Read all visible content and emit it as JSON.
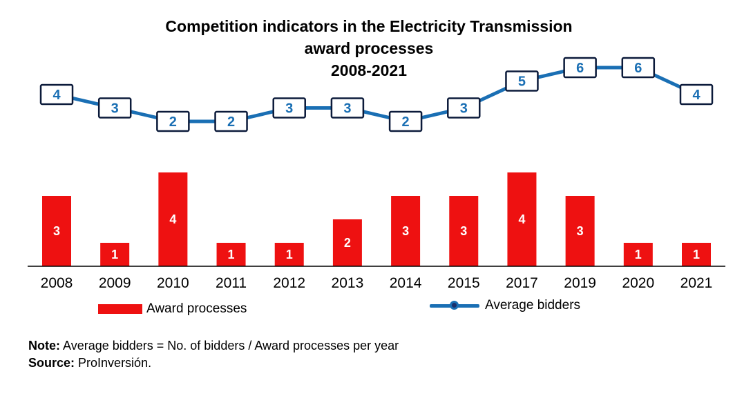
{
  "colors": {
    "bar": "#ee1111",
    "line": "#1a6fb4",
    "marker_border": "#0b1a3a",
    "marker_fill": "#ffffff",
    "label_text_bar": "#ffffff",
    "label_text_line": "#1a6fb4"
  },
  "chart_data": {
    "type": "bar+line",
    "title_lines": [
      "Competition indicators in the Electricity Transmission",
      "award processes",
      "2008-2021"
    ],
    "categories": [
      "2008",
      "2009",
      "2010",
      "2011",
      "2012",
      "2013",
      "2014",
      "2015",
      "2017",
      "2019",
      "2020",
      "2021"
    ],
    "series": [
      {
        "name": "Award processes",
        "kind": "bar",
        "values": [
          3,
          1,
          4,
          1,
          1,
          2,
          3,
          3,
          4,
          3,
          1,
          1
        ]
      },
      {
        "name": "Average bidders",
        "kind": "line",
        "values": [
          4,
          3,
          2,
          2,
          3,
          3,
          2,
          3,
          5,
          6,
          6,
          4
        ]
      }
    ],
    "xlabel": "",
    "ylabel": "",
    "grid": false,
    "legend_position": "bottom"
  },
  "legend": {
    "bar_label": "Award processes",
    "line_label": "Average bidders"
  },
  "notes": {
    "note_label": "Note:",
    "note_text": " Average bidders = No. of bidders / Award processes per year",
    "source_label": "Source:",
    "source_text": " ProInversión."
  }
}
